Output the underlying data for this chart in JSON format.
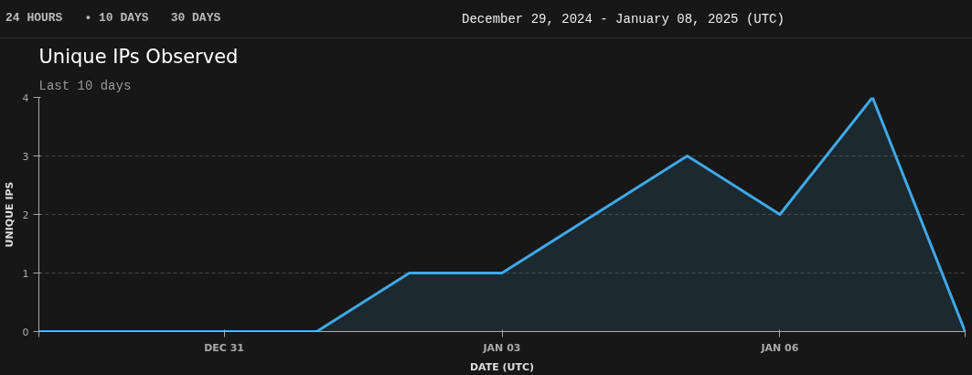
{
  "chart_data": {
    "type": "area",
    "title": "Unique IPs Observed",
    "subtitle": "Last 10 days",
    "xlabel": "DATE (UTC)",
    "ylabel": "UNIQUE IPS",
    "annotations": [
      "24 HOURS",
      "• 10 DAYS",
      "30 DAYS",
      "December 29, 2024 - January 08, 2025 (UTC)"
    ],
    "x": [
      "2024-12-29",
      "2024-12-30",
      "2024-12-31",
      "2025-01-01",
      "2025-01-02",
      "2025-01-03",
      "2025-01-04",
      "2025-01-05",
      "2025-01-06",
      "2025-01-07",
      "2025-01-08"
    ],
    "series": [
      {
        "color": "#3fa9e8",
        "values": [
          0,
          0,
          0,
          0,
          1,
          1,
          2,
          3,
          2,
          4,
          0
        ]
      }
    ],
    "xlim": [
      "2024-12-29",
      "2025-01-08"
    ],
    "xticks": [
      {
        "value": "2024-12-29",
        "label": null
      },
      {
        "value": "2024-12-31",
        "label": "DEC 31"
      },
      {
        "value": "2025-01-03",
        "label": "JAN 03"
      },
      {
        "value": "2025-01-06",
        "label": "JAN 06"
      },
      {
        "value": "2025-01-08",
        "label": null
      }
    ],
    "ylim": [
      0,
      4
    ],
    "yticks": [
      0,
      1,
      2,
      3,
      4
    ],
    "grid": "y",
    "line_style": "solid"
  }
}
